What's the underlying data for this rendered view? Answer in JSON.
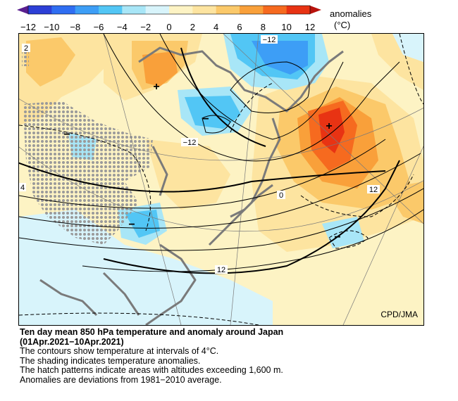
{
  "colorbar": {
    "legend_title": "anomalies",
    "legend_unit": "(°C)",
    "ticks": [
      "−12",
      "−10",
      "−8",
      "−6",
      "−4",
      "−2",
      "0",
      "2",
      "4",
      "6",
      "8",
      "10",
      "12"
    ],
    "colors": [
      "#2c3fd6",
      "#2f6ef2",
      "#3d9ef6",
      "#52c6f5",
      "#a8e6f7",
      "#d8f4fb",
      "#fdf3c4",
      "#fde4a0",
      "#fbc96a",
      "#f9a03a",
      "#f66a1f",
      "#e83313"
    ]
  },
  "map": {
    "contour_labels": [
      "−12",
      "−12",
      "0",
      "12",
      "12",
      "4",
      "2"
    ],
    "anomaly_markers": [
      "+",
      "+",
      "−",
      "−",
      "−",
      "−"
    ],
    "credit": "CPD/JMA"
  },
  "caption": {
    "title_line1": "Ten day mean 850 hPa temperature and anomaly around Japan",
    "title_line2": "(01Apr.2021−10Apr.2021)",
    "line1": "The contours show temperature at intervals of 4°C.",
    "line2": "The shading indicates temperature anomalies.",
    "line3": "The hatch patterns indicate areas with altitudes exceeding 1,600 m.",
    "line4": "Anomalies are deviations from 1981−2010 average."
  }
}
